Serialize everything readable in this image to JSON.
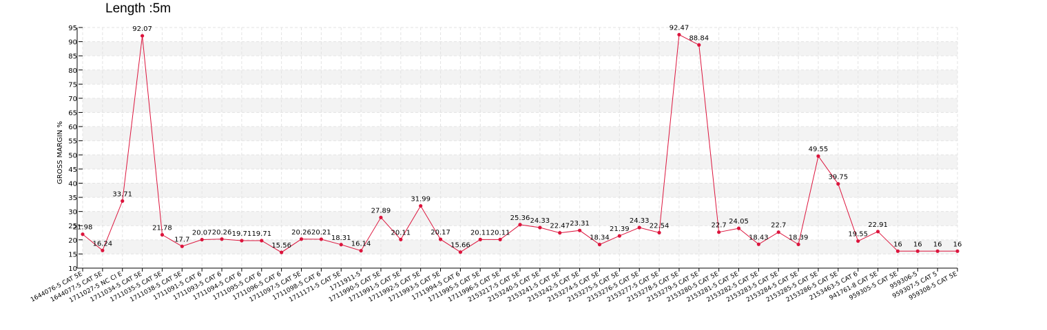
{
  "chart_data": {
    "type": "line",
    "title": "Length :5m",
    "ylabel": "GROSS MARGIN %",
    "xlabel": "",
    "ylim": [
      10,
      95
    ],
    "yticks": [
      10,
      15,
      20,
      25,
      30,
      35,
      40,
      45,
      50,
      55,
      60,
      65,
      70,
      75,
      80,
      85,
      90,
      95
    ],
    "grid": true,
    "colors": {
      "line": "#dc143c",
      "grid": "#e3e3e3",
      "band": "#f3f3f3",
      "axis": "#000000"
    },
    "categories": [
      "1644076-5 CAT 5E",
      "1644077-5 CAT 5E",
      "1711027-5 NC CI E",
      "1711034-5 CAT 5E",
      "1711035-5 CAT 5E",
      "1711038-5 CAT 5E",
      "1711091-5 CAT 6",
      "1711093-5 CAT 6",
      "1711094-5 CAT 6",
      "1711095-5 CAT 6",
      "1711096-5 CAT 6",
      "1711097-5 CAT 5E",
      "1711098-5 CAT 6",
      "1711171-5 CAT 5E",
      "1711911-5",
      "1711990-5 CAT 5E",
      "1711991-5 CAT 5E",
      "1711992-5 CAT 5E",
      "1711993-5 CAT 5E",
      "1711994-5 CAT 6",
      "1711995-5 CAT 5E",
      "1711996-5 CAT 5E",
      "2153217-5 CAT 5E",
      "2153240-5 CAT 5E",
      "2153241-5 CAT 5E",
      "2153242-5 CAT 5E",
      "2153274-5 CAT 5E",
      "2153275-5 CAT 5E",
      "2153276-5 CAT 5E",
      "2153277-5 CAT 5E",
      "2153278-5 CAT 5E",
      "2153279-5 CAT 5E",
      "2153280-5 CAT 5E",
      "2153281-5 CAT 5E",
      "2153282-5 CAT 5E",
      "2153283-5 CAT 5E",
      "2153284-5 CAT 5E",
      "2153285-5 CAT 5E",
      "2153286-5 CAT 5E",
      "2153463-5 CAT 6",
      "941761-8 CAT 5E",
      "959305-5 CAT 5E",
      "959306-5",
      "959307-5 CAT 5",
      "959308-5 CAT 5E"
    ],
    "values": [
      21.98,
      16.24,
      33.71,
      92.07,
      21.78,
      17.7,
      20.07,
      20.26,
      19.71,
      19.71,
      15.56,
      20.26,
      20.21,
      18.31,
      16.14,
      27.89,
      20.11,
      31.99,
      20.17,
      15.66,
      20.11,
      20.11,
      25.36,
      24.33,
      22.47,
      23.31,
      18.34,
      21.39,
      24.33,
      22.54,
      92.47,
      88.84,
      22.7,
      24.05,
      18.43,
      22.7,
      18.39,
      49.55,
      39.75,
      19.55,
      22.91,
      16,
      16,
      16,
      16
    ]
  }
}
